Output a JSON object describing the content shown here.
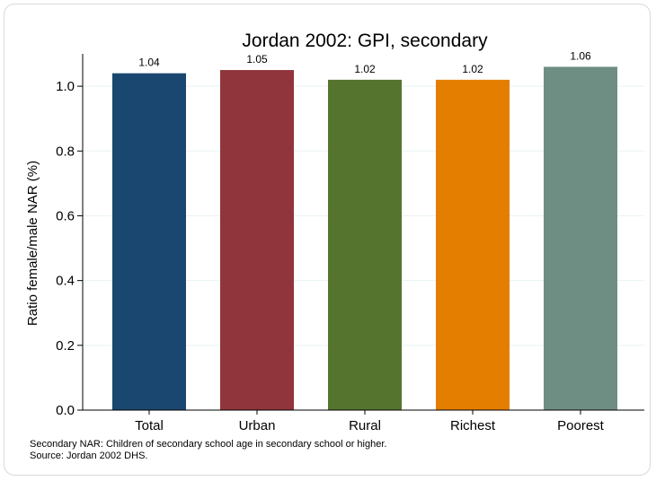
{
  "chart_data": {
    "type": "bar",
    "title": "Jordan 2002: GPI, secondary",
    "ylabel": "Ratio female/male NAR (%)",
    "xlabel": "",
    "categories": [
      "Total",
      "Urban",
      "Rural",
      "Richest",
      "Poorest"
    ],
    "values": [
      1.04,
      1.05,
      1.02,
      1.02,
      1.06
    ],
    "value_labels": [
      "1.04",
      "1.05",
      "1.02",
      "1.02",
      "1.06"
    ],
    "colors": [
      "#1a476f",
      "#90353b",
      "#55752f",
      "#e37e00",
      "#6e8e84"
    ],
    "ylim": [
      0,
      1.1
    ],
    "yticks": [
      0,
      0.2,
      0.4,
      0.6,
      0.8,
      1.0
    ],
    "ytick_labels": [
      "0.0",
      "0.2",
      "0.4",
      "0.6",
      "0.8",
      "1.0"
    ],
    "grid": true,
    "legend": "none"
  },
  "notes": {
    "line1": "Secondary NAR: Children of secondary school age in secondary school or higher.",
    "line2": "Source: Jordan 2002 DHS."
  }
}
